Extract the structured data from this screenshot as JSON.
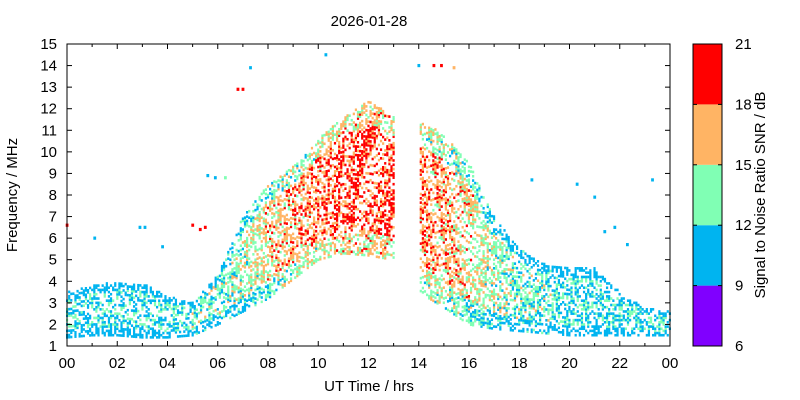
{
  "chart_data": {
    "type": "heatmap",
    "title": "2026-01-28",
    "xlabel": "UT Time / hrs",
    "ylabel": "Frequency / MHz",
    "colorbar_label": "Signal to Noise Ratio SNR / dB",
    "xlim": [
      0,
      24
    ],
    "ylim": [
      1,
      15
    ],
    "x_ticks": [
      "00",
      "02",
      "04",
      "06",
      "08",
      "10",
      "12",
      "14",
      "16",
      "18",
      "20",
      "22",
      "00"
    ],
    "y_ticks": [
      1,
      2,
      3,
      4,
      5,
      6,
      7,
      8,
      9,
      10,
      11,
      12,
      13,
      14,
      15
    ],
    "colorbar": {
      "ticks": [
        6,
        9,
        12,
        15,
        18,
        21
      ],
      "bands": [
        {
          "from": 6,
          "to": 9,
          "color": "#8000ff"
        },
        {
          "from": 9,
          "to": 12,
          "color": "#00b4f0"
        },
        {
          "from": 12,
          "to": 15,
          "color": "#80ffb4"
        },
        {
          "from": 15,
          "to": 18,
          "color": "#ffb464"
        },
        {
          "from": 18,
          "to": 21,
          "color": "#ff0000"
        }
      ]
    },
    "diurnal_envelope": {
      "hours": [
        0,
        1,
        2,
        3,
        4,
        5,
        6,
        7,
        8,
        9,
        10,
        11,
        12,
        13,
        14,
        15,
        16,
        17,
        18,
        19,
        20,
        21,
        22,
        23,
        24
      ],
      "fmin_MHz": [
        1.4,
        1.5,
        1.5,
        1.4,
        1.4,
        1.5,
        2.0,
        2.6,
        3.2,
        4.1,
        5.0,
        5.3,
        5.2,
        5.0,
        3.5,
        2.8,
        2.0,
        1.8,
        1.7,
        1.6,
        1.5,
        1.5,
        1.5,
        1.5,
        1.5
      ],
      "fmax_MHz": [
        3.5,
        3.8,
        4.0,
        3.9,
        3.3,
        3.0,
        4.3,
        7.0,
        8.5,
        9.3,
        10.6,
        11.6,
        12.4,
        11.6,
        11.6,
        10.8,
        9.5,
        7.0,
        5.5,
        4.8,
        4.6,
        4.6,
        3.5,
        2.8,
        2.6
      ],
      "dominant_snr_dB": [
        10,
        10,
        10,
        10,
        10,
        11,
        11,
        12,
        14,
        15,
        16,
        17,
        17,
        17,
        16,
        15,
        14,
        12,
        11,
        11,
        10,
        10,
        10,
        10,
        10
      ]
    },
    "data_gap_hours": [
      13,
      14
    ],
    "isolated_points": [
      {
        "hour": 0.0,
        "freq": 6.6,
        "snr": 19
      },
      {
        "hour": 1.1,
        "freq": 6.0,
        "snr": 10
      },
      {
        "hour": 2.9,
        "freq": 6.5,
        "snr": 10
      },
      {
        "hour": 3.1,
        "freq": 6.5,
        "snr": 10
      },
      {
        "hour": 3.8,
        "freq": 5.6,
        "snr": 10
      },
      {
        "hour": 5.0,
        "freq": 6.6,
        "snr": 19
      },
      {
        "hour": 5.3,
        "freq": 6.4,
        "snr": 19
      },
      {
        "hour": 5.5,
        "freq": 6.5,
        "snr": 19
      },
      {
        "hour": 5.6,
        "freq": 8.9,
        "snr": 10
      },
      {
        "hour": 5.9,
        "freq": 8.8,
        "snr": 10
      },
      {
        "hour": 6.3,
        "freq": 8.8,
        "snr": 13
      },
      {
        "hour": 6.8,
        "freq": 12.9,
        "snr": 20
      },
      {
        "hour": 7.0,
        "freq": 12.9,
        "snr": 20
      },
      {
        "hour": 7.3,
        "freq": 13.9,
        "snr": 10
      },
      {
        "hour": 10.3,
        "freq": 14.5,
        "snr": 10
      },
      {
        "hour": 14.0,
        "freq": 14.0,
        "snr": 10
      },
      {
        "hour": 14.6,
        "freq": 14.0,
        "snr": 19
      },
      {
        "hour": 14.9,
        "freq": 14.0,
        "snr": 19
      },
      {
        "hour": 15.4,
        "freq": 13.9,
        "snr": 16
      },
      {
        "hour": 18.5,
        "freq": 8.7,
        "snr": 10
      },
      {
        "hour": 20.3,
        "freq": 8.5,
        "snr": 10
      },
      {
        "hour": 21.0,
        "freq": 7.9,
        "snr": 10
      },
      {
        "hour": 21.4,
        "freq": 6.3,
        "snr": 10
      },
      {
        "hour": 21.8,
        "freq": 6.5,
        "snr": 10
      },
      {
        "hour": 22.3,
        "freq": 5.7,
        "snr": 10
      },
      {
        "hour": 23.3,
        "freq": 8.7,
        "snr": 10
      }
    ],
    "grid": false,
    "legend": "colorbar-right"
  }
}
